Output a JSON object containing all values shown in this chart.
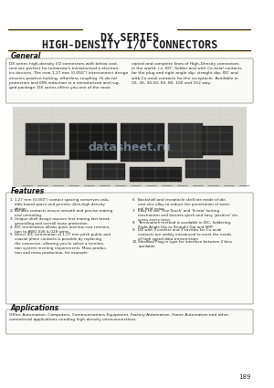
{
  "title_line1": "DX SERIES",
  "title_line2": "HIGH-DENSITY I/O CONNECTORS",
  "bg_color": "#f5f5f0",
  "page_bg": "#ffffff",
  "general_heading": "General",
  "general_text_col1": "DX series high-density I/O connectors with below cost-\nrent are perfect for tomorrow's miniaturized a electron-\nics devices. The new 1.27 mm (0.050\") interconnect design\nensures positive locking, effortless coupling. Hi-de-tal\nprotection and EMI reduction in a miniaturized and rugged package. DX series offers you one of the most",
  "general_text_col2": "varied and complete lines of High-Density connectors\nin the world, i.e. IDC, Solder and with Co-axial contacts\nfor the plug and right angle dip, straight dip, IDC and\nwith Co-axial contacts for the receptacle. Available in\n20, 26, 34,50, 60, 80, 100 and 152 way.",
  "features_heading": "Features",
  "features_items": [
    "1.27 mm (0.050\") contact spacing conserves valu-\nable board space and permits ultra-high density\ndesign.",
    "Bellows contacts ensure smooth and precise mating\nand unmating.",
    "Unique shell design assures first mating-last break\ngrounding and overall noise protection.",
    "IDC termination allows quick and low cost termina-\ntion to AWG 026 & 028 wires.",
    "Direct IDC termination of 1.27 mm pitch public and\ncoaxial plane contacts is possible by replacing the connector, allowing you to select a termina-tion system meeting requirements. Mass production\nand mass production, for example."
  ],
  "features_items_right": [
    "Backshell and receptacle shell are made of die-\ncast zinc alloy to reduce the penetration of exter-\nnal field noise.",
    "Easy to use 'One-Touch' and 'Screw' locking\nmechanism and assures quick and easy 'positive' clo-\nsures every time.",
    "Termination method is available in IDC, Soldering,\nRight Angle Dip or Straight Dip and SMT.",
    "DX with 3 centers and 3 cavities for Co-axial\ncontacts are widely introduced to meet the needs\nof high speed data transmission.",
    "Shielded Plug-in type for interface between 2 bins\navailable."
  ],
  "applications_heading": "Applications",
  "applications_text": "Office Automation, Computers, Communications Equipment, Factory Automation, Home Automation and other\ncommercial applications needing high density interconnections.",
  "page_number": "189",
  "title_color": "#1a1a1a",
  "heading_color": "#1a1a1a",
  "text_color": "#2a2a2a",
  "box_border_color": "#888888",
  "line_color": "#b8860b",
  "thin_line_color": "#333333"
}
